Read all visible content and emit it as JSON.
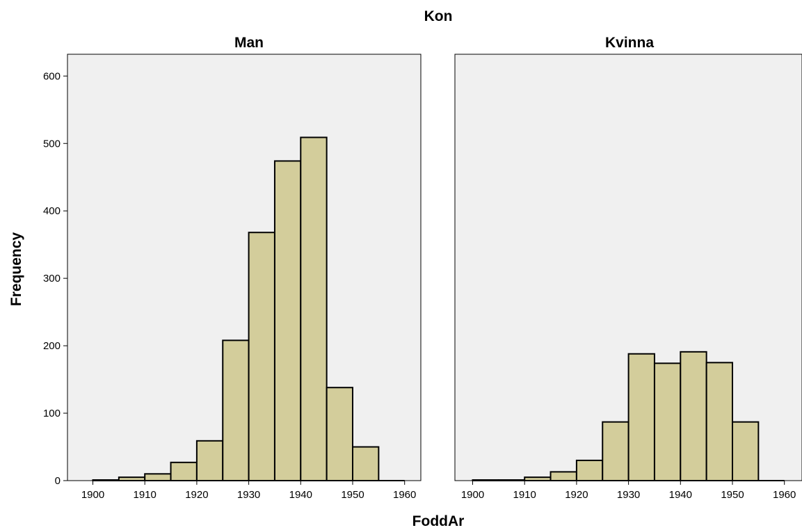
{
  "figure": {
    "panel_variable": "Kon",
    "xlabel": "FoddAr",
    "ylabel": "Frequency"
  },
  "chart_data": {
    "type": "bar",
    "title": "Kon",
    "xlabel": "FoddAr",
    "ylabel": "Frequency",
    "xlim": [
      1895,
      1962
    ],
    "ylim": [
      0,
      630
    ],
    "x_ticks": [
      1900,
      1910,
      1920,
      1930,
      1940,
      1950,
      1960
    ],
    "y_ticks": [
      0,
      100,
      200,
      300,
      400,
      500,
      600
    ],
    "bar_color": "#d3cd9b",
    "plot_background": "#f0f0f0",
    "bin_edges": [
      1900,
      1905,
      1910,
      1915,
      1920,
      1925,
      1930,
      1935,
      1940,
      1945,
      1950,
      1955,
      1960
    ],
    "series": [
      {
        "name": "Man",
        "values": [
          1,
          5,
          10,
          27,
          59,
          208,
          368,
          474,
          509,
          138,
          50,
          0
        ]
      },
      {
        "name": "Kvinna",
        "values": [
          1,
          1,
          5,
          13,
          30,
          87,
          188,
          174,
          191,
          175,
          87,
          0
        ]
      }
    ]
  }
}
